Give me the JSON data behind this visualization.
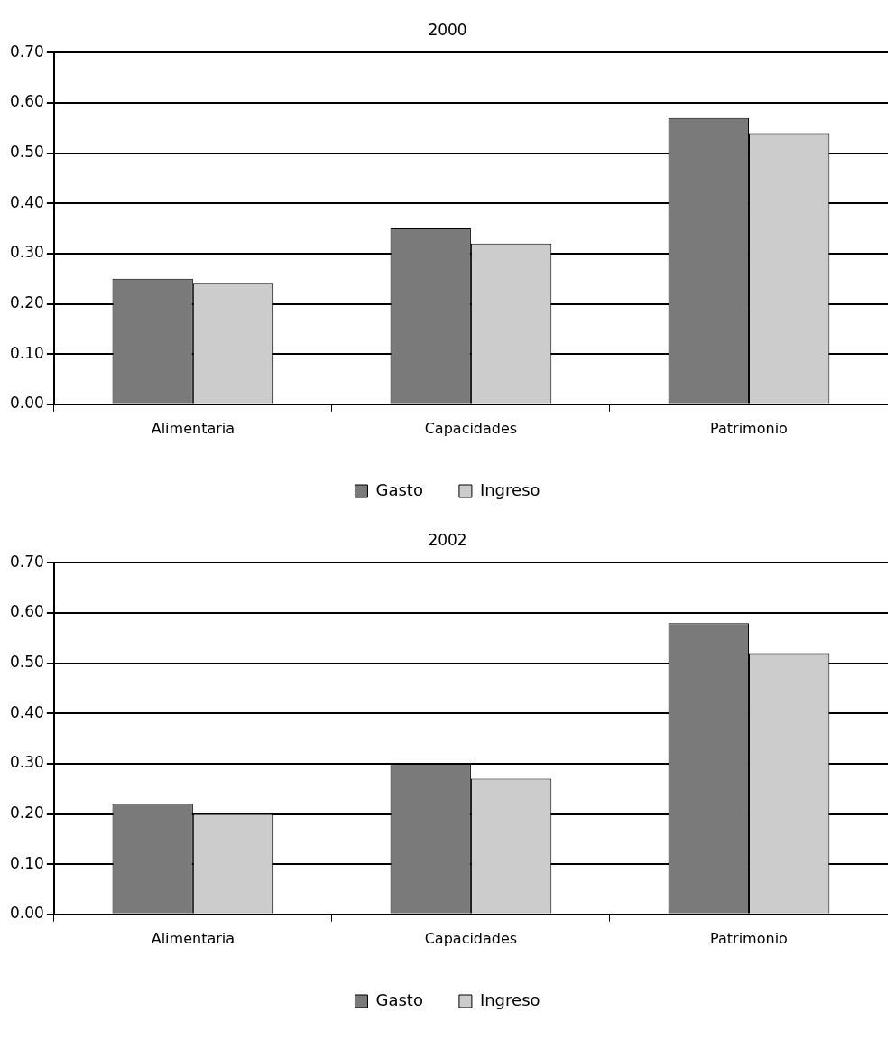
{
  "chart_data": [
    {
      "type": "bar",
      "title": "2000",
      "categories": [
        "Alimentaria",
        "Capacidades",
        "Patrimonio"
      ],
      "series": [
        {
          "name": "Gasto",
          "color": "#7a7a7a",
          "values": [
            0.25,
            0.35,
            0.57
          ]
        },
        {
          "name": "Ingreso",
          "color": "#cccccc",
          "values": [
            0.24,
            0.32,
            0.54
          ]
        }
      ],
      "ylim": [
        0,
        0.7
      ],
      "yticks": [
        {
          "value": 0,
          "label": "0.00"
        },
        {
          "value": 0.1,
          "label": "0.10"
        },
        {
          "value": 0.2,
          "label": "0.20"
        },
        {
          "value": 0.3,
          "label": "0.30"
        },
        {
          "value": 0.4,
          "label": "0.40"
        },
        {
          "value": 0.5,
          "label": "0.50"
        },
        {
          "value": 0.6,
          "label": "0.60"
        },
        {
          "value": 0.7,
          "label": "0.70"
        }
      ],
      "grid": "y",
      "legend": "bottom"
    },
    {
      "type": "bar",
      "title": "2002",
      "categories": [
        "Alimentaria",
        "Capacidades",
        "Patrimonio"
      ],
      "series": [
        {
          "name": "Gasto",
          "color": "#7a7a7a",
          "values": [
            0.22,
            0.3,
            0.58
          ]
        },
        {
          "name": "Ingreso",
          "color": "#cccccc",
          "values": [
            0.2,
            0.27,
            0.52
          ]
        }
      ],
      "ylim": [
        0,
        0.7
      ],
      "yticks": [
        {
          "value": 0,
          "label": "0.00"
        },
        {
          "value": 0.1,
          "label": "0.10"
        },
        {
          "value": 0.2,
          "label": "0.20"
        },
        {
          "value": 0.3,
          "label": "0.30"
        },
        {
          "value": 0.4,
          "label": "0.40"
        },
        {
          "value": 0.5,
          "label": "0.50"
        },
        {
          "value": 0.6,
          "label": "0.60"
        },
        {
          "value": 0.7,
          "label": "0.70"
        }
      ],
      "grid": "y",
      "legend": "bottom"
    }
  ]
}
